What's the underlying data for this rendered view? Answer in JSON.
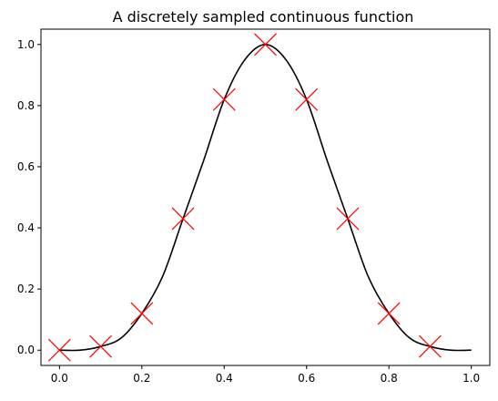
{
  "chart_data": {
    "type": "line",
    "title": "A discretely sampled continuous function",
    "xlabel": "",
    "ylabel": "",
    "xlim": [
      -0.045,
      1.045
    ],
    "ylim": [
      -0.05,
      1.05
    ],
    "xticks": [
      "0.0",
      "0.2",
      "0.4",
      "0.6",
      "0.8",
      "1.0"
    ],
    "yticks": [
      "0.0",
      "0.2",
      "0.4",
      "0.6",
      "0.8",
      "1.0"
    ],
    "grid": false,
    "legend": "none",
    "series": [
      {
        "kind": "line",
        "color": "#000000",
        "x": [
          0.0,
          0.05,
          0.1,
          0.15,
          0.2,
          0.25,
          0.3,
          0.35,
          0.4,
          0.45,
          0.5,
          0.55,
          0.6,
          0.65,
          0.7,
          0.75,
          0.8,
          0.85,
          0.9,
          0.95,
          1.0
        ],
        "y": [
          0.0,
          0.0,
          0.012,
          0.04,
          0.12,
          0.24,
          0.43,
          0.62,
          0.82,
          0.95,
          1.0,
          0.95,
          0.82,
          0.62,
          0.43,
          0.24,
          0.12,
          0.04,
          0.012,
          0.0,
          0.0
        ]
      },
      {
        "kind": "scatter",
        "marker": "x",
        "color": "#ff0000",
        "x": [
          0.0,
          0.1,
          0.2,
          0.3,
          0.4,
          0.5,
          0.6,
          0.7,
          0.8,
          0.9
        ],
        "y": [
          0.0,
          0.012,
          0.12,
          0.43,
          0.82,
          1.0,
          0.82,
          0.43,
          0.12,
          0.012
        ]
      }
    ]
  }
}
